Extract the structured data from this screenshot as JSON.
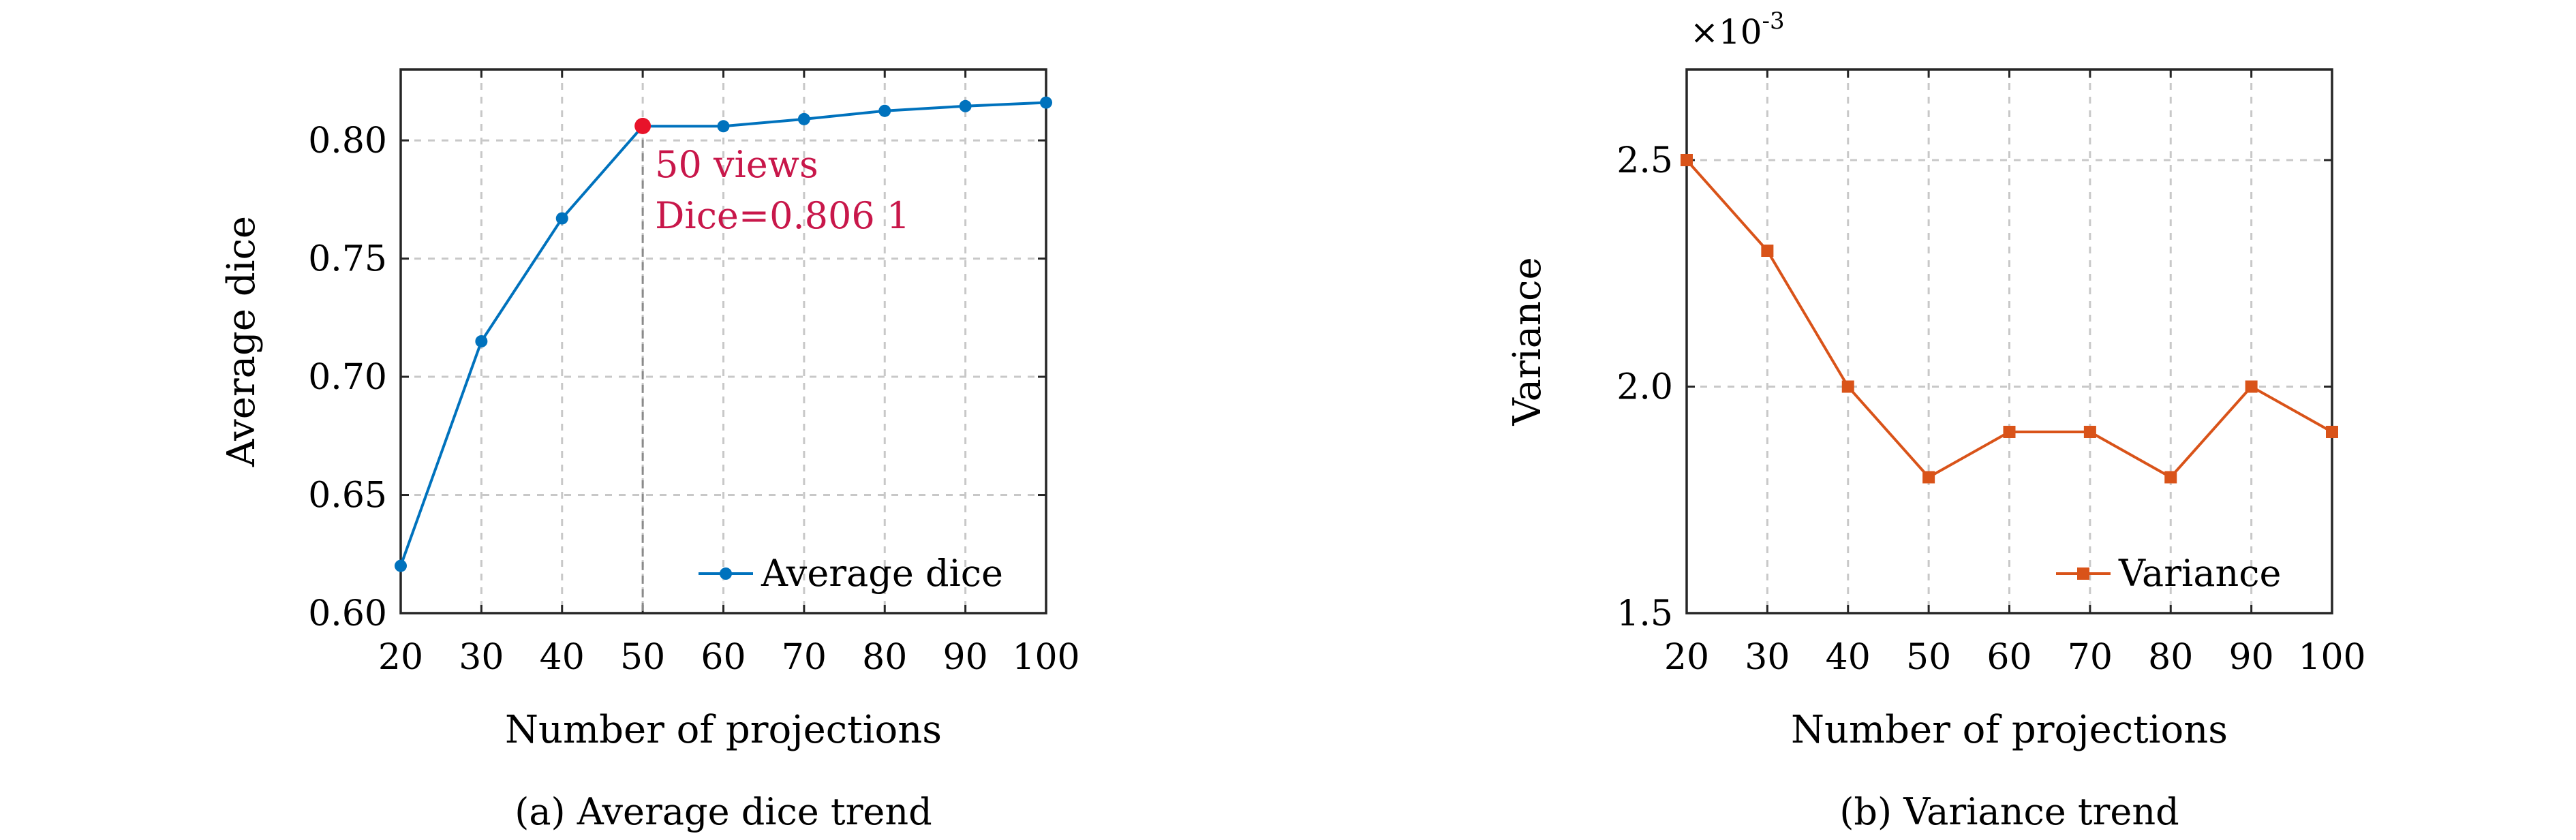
{
  "chart_data": [
    {
      "type": "line",
      "caption": "(a) Average dice trend",
      "xlabel": "Number of projections",
      "ylabel": "Average dice",
      "x": [
        20,
        30,
        40,
        50,
        60,
        70,
        80,
        90,
        100
      ],
      "xlim": [
        20,
        100
      ],
      "ylim": [
        0.6,
        0.83
      ],
      "xticks": [
        "20",
        "30",
        "40",
        "50",
        "60",
        "70",
        "80",
        "90",
        "100"
      ],
      "yticks": [
        "0.60",
        "0.65",
        "0.70",
        "0.75",
        "0.80"
      ],
      "ytick_values": [
        0.6,
        0.65,
        0.7,
        0.75,
        0.8
      ],
      "grid": true,
      "legend_position": "bottom-right",
      "series": [
        {
          "name": "Average dice",
          "color": "#0072BD",
          "marker": "circle",
          "values": [
            0.62,
            0.715,
            0.767,
            0.806,
            0.806,
            0.809,
            0.8125,
            0.8145,
            0.816
          ]
        }
      ],
      "highlight": {
        "x": 50,
        "y": 0.8061,
        "color": "#E8132A",
        "label_line1": "50 views",
        "label_line2": "Dice=0.806 1",
        "label_color": "#C8174A"
      }
    },
    {
      "type": "line",
      "caption": "(b) Variance trend",
      "xlabel": "Number of projections",
      "ylabel": "Variance",
      "exponent_base": "×10",
      "exponent_power": "-3",
      "x": [
        20,
        30,
        40,
        50,
        60,
        70,
        80,
        90,
        100
      ],
      "xlim": [
        20,
        100
      ],
      "ylim": [
        1.5,
        2.7
      ],
      "xticks": [
        "20",
        "30",
        "40",
        "50",
        "60",
        "70",
        "80",
        "90",
        "100"
      ],
      "yticks": [
        "1.5",
        "2.0",
        "2.5"
      ],
      "ytick_values": [
        1.5,
        2.0,
        2.5
      ],
      "grid": true,
      "legend_position": "bottom-right",
      "series": [
        {
          "name": "Variance",
          "color": "#D95319",
          "marker": "square",
          "values": [
            2.5,
            2.3,
            2.0,
            1.8,
            1.9,
            1.9,
            1.8,
            2.0,
            1.9
          ]
        }
      ]
    }
  ]
}
